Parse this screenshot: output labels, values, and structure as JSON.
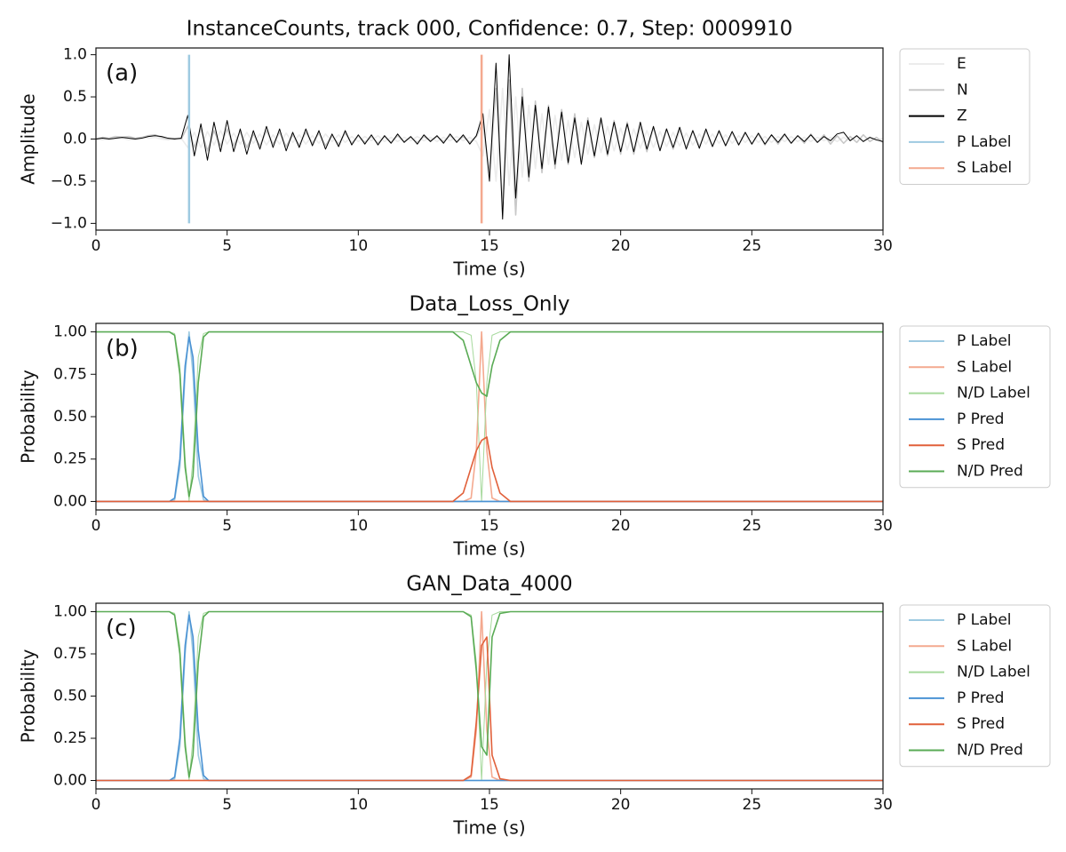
{
  "chart_data": [
    {
      "type": "line",
      "title": "InstanceCounts, track 000, Confidence: 0.7, Step: 0009910",
      "annotation": "(a)",
      "x_label": "Time (s)",
      "y_label": "Amplitude",
      "xlim": [
        0,
        30
      ],
      "xticks": [
        0,
        5,
        10,
        15,
        20,
        25,
        30
      ],
      "ylim": [
        -1.08,
        1.08
      ],
      "yticks": [
        {
          "value": -1,
          "label": "−1.0"
        },
        {
          "value": -0.5,
          "label": "−0.5"
        },
        {
          "value": 0,
          "label": "0.0"
        },
        {
          "value": 0.5,
          "label": "0.5"
        },
        {
          "value": 1,
          "label": "1.0"
        }
      ],
      "x": [
        0,
        0.25,
        0.5,
        0.75,
        1,
        1.25,
        1.5,
        1.75,
        2,
        2.25,
        2.5,
        2.75,
        3,
        3.25,
        3.5,
        3.75,
        4,
        4.25,
        4.5,
        4.75,
        5,
        5.25,
        5.5,
        5.75,
        6,
        6.25,
        6.5,
        6.75,
        7,
        7.25,
        7.5,
        7.75,
        8,
        8.25,
        8.5,
        8.75,
        9,
        9.25,
        9.5,
        9.75,
        10,
        10.25,
        10.5,
        10.75,
        11,
        11.25,
        11.5,
        11.75,
        12,
        12.25,
        12.5,
        12.75,
        13,
        13.25,
        13.5,
        13.75,
        14,
        14.25,
        14.5,
        14.75,
        15,
        15.25,
        15.5,
        15.75,
        16,
        16.25,
        16.5,
        16.75,
        17,
        17.25,
        17.5,
        17.75,
        18,
        18.25,
        18.5,
        18.75,
        19,
        19.25,
        19.5,
        19.75,
        20,
        20.25,
        20.5,
        20.75,
        21,
        21.25,
        21.5,
        21.75,
        22,
        22.25,
        22.5,
        22.75,
        23,
        23.25,
        23.5,
        23.75,
        24,
        24.25,
        24.5,
        24.75,
        25,
        25.25,
        25.5,
        25.75,
        26,
        26.25,
        26.5,
        26.75,
        27,
        27.25,
        27.5,
        27.75,
        28,
        28.25,
        28.5,
        28.75,
        29,
        29.25,
        29.5,
        29.75,
        30
      ],
      "series": [
        {
          "name": "E",
          "color": "#ececec",
          "values": [
            0,
            -0.01,
            0.01,
            0,
            0.01,
            -0.01,
            0,
            0.02,
            0.01,
            0.02,
            0,
            -0.01,
            0,
            0.01,
            -0.1,
            0.08,
            -0.1,
            0.09,
            -0.07,
            0.1,
            -0.06,
            0.07,
            -0.06,
            0.08,
            -0.05,
            0.06,
            -0.07,
            0.05,
            -0.06,
            0.07,
            -0.04,
            0.05,
            -0.06,
            0.04,
            -0.05,
            0.06,
            -0.03,
            0.05,
            -0.04,
            0.03,
            -0.03,
            0.03,
            -0.02,
            0.04,
            -0.03,
            0.02,
            -0.03,
            0.02,
            -0.02,
            0.03,
            -0.02,
            0.02,
            -0.03,
            0.02,
            -0.02,
            0.03,
            -0.02,
            0.02,
            -0.03,
            -0.2,
            0.35,
            -0.5,
            0.6,
            -0.55,
            0.5,
            -0.45,
            0.4,
            -0.35,
            0.3,
            -0.3,
            0.28,
            -0.25,
            0.22,
            -0.22,
            0.2,
            -0.18,
            0.17,
            -0.16,
            0.15,
            -0.14,
            0.13,
            -0.13,
            0.12,
            -0.11,
            0.1,
            -0.1,
            0.09,
            -0.09,
            0.08,
            -0.08,
            0.07,
            -0.07,
            0.06,
            -0.06,
            0.06,
            -0.05,
            0.05,
            -0.05,
            0.04,
            -0.04,
            0.04,
            -0.04,
            0.03,
            -0.04,
            0.03,
            -0.03,
            0.03,
            -0.03,
            0.02,
            -0.03,
            0.02,
            -0.02,
            0.02,
            -0.03,
            0.02,
            -0.02,
            0.02,
            -0.02,
            0.02,
            -0.02,
            0.01
          ]
        },
        {
          "name": "N",
          "color": "#c8c8c8",
          "values": [
            0,
            0.02,
            0.01,
            0.03,
            0.02,
            0.03,
            0.01,
            0.02,
            0.04,
            0.05,
            0.02,
            0,
            0.01,
            0,
            0.15,
            -0.1,
            0.12,
            -0.14,
            0.1,
            -0.08,
            0.12,
            -0.08,
            0.09,
            -0.1,
            0.06,
            -0.08,
            0.1,
            -0.06,
            0.08,
            -0.09,
            0.05,
            -0.07,
            0.08,
            -0.05,
            0.07,
            -0.08,
            0.04,
            -0.06,
            0.07,
            -0.05,
            0.04,
            -0.04,
            0.03,
            -0.05,
            0.03,
            -0.04,
            0.04,
            -0.03,
            0.02,
            -0.04,
            0.03,
            -0.02,
            0.03,
            -0.03,
            0.04,
            -0.03,
            0.03,
            -0.04,
            0.03,
            0.2,
            -0.4,
            0.6,
            -0.8,
            0.7,
            -0.9,
            0.6,
            -0.5,
            0.45,
            -0.4,
            0.4,
            -0.35,
            0.35,
            -0.3,
            0.3,
            -0.28,
            0.25,
            -0.22,
            0.24,
            -0.2,
            0.22,
            -0.18,
            0.2,
            -0.18,
            0.16,
            -0.15,
            0.14,
            -0.13,
            0.12,
            -0.12,
            0.11,
            -0.1,
            0.1,
            -0.09,
            0.1,
            -0.08,
            0.09,
            -0.08,
            0.08,
            -0.07,
            0.07,
            -0.06,
            0.06,
            -0.07,
            0.05,
            -0.06,
            0.05,
            -0.05,
            0.04,
            -0.05,
            0.06,
            -0.04,
            0.05,
            -0.06,
            0.04,
            -0.05,
            0.03,
            -0.04,
            0.05,
            -0.03,
            0.02,
            -0.04
          ]
        },
        {
          "name": "Z",
          "color": "#000000",
          "values": [
            0,
            0.01,
            0,
            0.01,
            0.02,
            0.01,
            0,
            0.01,
            0.03,
            0.04,
            0.03,
            0.01,
            0,
            0.01,
            0.28,
            -0.2,
            0.18,
            -0.25,
            0.2,
            -0.15,
            0.22,
            -0.15,
            0.12,
            -0.18,
            0.1,
            -0.12,
            0.15,
            -0.1,
            0.12,
            -0.14,
            0.08,
            -0.1,
            0.12,
            -0.08,
            0.1,
            -0.12,
            0.06,
            -0.09,
            0.1,
            -0.07,
            0.05,
            -0.06,
            0.05,
            -0.07,
            0.04,
            -0.05,
            0.06,
            -0.04,
            0.03,
            -0.06,
            0.05,
            -0.03,
            0.04,
            -0.05,
            0.06,
            -0.04,
            0.05,
            -0.06,
            0.04,
            0.3,
            -0.5,
            0.9,
            -0.95,
            1,
            -0.7,
            0.5,
            -0.45,
            0.4,
            -0.35,
            0.38,
            -0.3,
            0.32,
            -0.28,
            0.25,
            -0.3,
            0.22,
            -0.2,
            0.25,
            -0.18,
            0.2,
            -0.15,
            0.18,
            -0.15,
            0.2,
            -0.12,
            0.15,
            -0.14,
            0.12,
            -0.1,
            0.14,
            -0.12,
            0.1,
            -0.11,
            0.12,
            -0.09,
            0.1,
            -0.08,
            0.09,
            -0.07,
            0.08,
            -0.06,
            0.07,
            -0.06,
            0.05,
            -0.04,
            0.06,
            -0.05,
            0.04,
            -0.03,
            0.05,
            -0.04,
            0.03,
            -0.02,
            0.06,
            0.08,
            -0.02,
            0.04,
            -0.03,
            0.02,
            -0.01,
            -0.03
          ]
        },
        {
          "name": "P Label",
          "color": "#9ecae1",
          "x": [
            3.55,
            3.55
          ],
          "values": [
            -1,
            1
          ]
        },
        {
          "name": "S Label",
          "color": "#f4a98f",
          "x": [
            14.7,
            14.7
          ],
          "values": [
            -1,
            1
          ]
        }
      ]
    },
    {
      "type": "line",
      "title": "Data_Loss_Only",
      "annotation": "(b)",
      "x_label": "Time (s)",
      "y_label": "Probability",
      "xlim": [
        0,
        30
      ],
      "xticks": [
        0,
        5,
        10,
        15,
        20,
        25,
        30
      ],
      "ylim": [
        -0.05,
        1.05
      ],
      "yticks": [
        {
          "value": 0,
          "label": "0.00"
        },
        {
          "value": 0.25,
          "label": "0.25"
        },
        {
          "value": 0.5,
          "label": "0.50"
        },
        {
          "value": 0.75,
          "label": "0.75"
        },
        {
          "value": 1,
          "label": "1.00"
        }
      ],
      "x": [
        0,
        2.8,
        3.0,
        3.2,
        3.4,
        3.55,
        3.7,
        3.9,
        4.1,
        4.3,
        13.6,
        14.0,
        14.3,
        14.5,
        14.7,
        14.9,
        15.1,
        15.4,
        15.8,
        30
      ],
      "series": [
        {
          "name": "P Label",
          "color": "#9ecae1",
          "values": [
            0,
            0,
            0.01,
            0.2,
            0.75,
            1,
            0.75,
            0.15,
            0.01,
            0,
            0,
            0,
            0,
            0,
            0,
            0,
            0,
            0,
            0,
            0
          ]
        },
        {
          "name": "S Label",
          "color": "#f4a98f",
          "values": [
            0,
            0,
            0,
            0,
            0,
            0,
            0,
            0,
            0,
            0,
            0,
            0,
            0.02,
            0.3,
            1,
            0.3,
            0.02,
            0,
            0,
            0
          ]
        },
        {
          "name": "N/D Label",
          "color": "#a6d99c",
          "values": [
            1,
            1,
            0.99,
            0.8,
            0.25,
            0,
            0.25,
            0.85,
            0.99,
            1,
            1,
            1,
            0.98,
            0.7,
            0,
            0.7,
            0.98,
            1,
            1,
            1
          ]
        },
        {
          "name": "P Pred",
          "color": "#4a92d4",
          "values": [
            0,
            0,
            0.02,
            0.25,
            0.8,
            0.97,
            0.85,
            0.3,
            0.03,
            0,
            0,
            0,
            0,
            0,
            0,
            0,
            0,
            0,
            0,
            0
          ]
        },
        {
          "name": "S Pred",
          "color": "#e1603a",
          "values": [
            0,
            0,
            0,
            0,
            0,
            0,
            0,
            0,
            0,
            0,
            0,
            0.05,
            0.2,
            0.3,
            0.36,
            0.38,
            0.2,
            0.05,
            0,
            0
          ]
        },
        {
          "name": "N/D Pred",
          "color": "#5aab55",
          "values": [
            1,
            1,
            0.98,
            0.75,
            0.2,
            0.03,
            0.15,
            0.7,
            0.97,
            1,
            1,
            0.95,
            0.8,
            0.7,
            0.64,
            0.62,
            0.8,
            0.95,
            1,
            1
          ]
        }
      ]
    },
    {
      "type": "line",
      "title": "GAN_Data_4000",
      "annotation": "(c)",
      "x_label": "Time (s)",
      "y_label": "Probability",
      "xlim": [
        0,
        30
      ],
      "xticks": [
        0,
        5,
        10,
        15,
        20,
        25,
        30
      ],
      "ylim": [
        -0.05,
        1.05
      ],
      "yticks": [
        {
          "value": 0,
          "label": "0.00"
        },
        {
          "value": 0.25,
          "label": "0.25"
        },
        {
          "value": 0.5,
          "label": "0.50"
        },
        {
          "value": 0.75,
          "label": "0.75"
        },
        {
          "value": 1,
          "label": "1.00"
        }
      ],
      "x": [
        0,
        2.8,
        3.0,
        3.2,
        3.4,
        3.55,
        3.7,
        3.9,
        4.1,
        4.3,
        13.6,
        14.0,
        14.3,
        14.5,
        14.7,
        14.9,
        15.1,
        15.4,
        15.8,
        30
      ],
      "series": [
        {
          "name": "P Label",
          "color": "#9ecae1",
          "values": [
            0,
            0,
            0.01,
            0.2,
            0.75,
            1,
            0.75,
            0.15,
            0.01,
            0,
            0,
            0,
            0,
            0,
            0,
            0,
            0,
            0,
            0,
            0
          ]
        },
        {
          "name": "S Label",
          "color": "#f4a98f",
          "values": [
            0,
            0,
            0,
            0,
            0,
            0,
            0,
            0,
            0,
            0,
            0,
            0,
            0.02,
            0.3,
            1,
            0.3,
            0.02,
            0,
            0,
            0
          ]
        },
        {
          "name": "N/D Label",
          "color": "#a6d99c",
          "values": [
            1,
            1,
            0.99,
            0.8,
            0.25,
            0,
            0.25,
            0.85,
            0.99,
            1,
            1,
            1,
            0.98,
            0.7,
            0,
            0.7,
            0.98,
            1,
            1,
            1
          ]
        },
        {
          "name": "P Pred",
          "color": "#4a92d4",
          "values": [
            0,
            0,
            0.02,
            0.25,
            0.8,
            0.98,
            0.85,
            0.3,
            0.03,
            0,
            0,
            0,
            0,
            0,
            0,
            0,
            0,
            0,
            0,
            0
          ]
        },
        {
          "name": "S Pred",
          "color": "#e1603a",
          "values": [
            0,
            0,
            0,
            0,
            0,
            0,
            0,
            0,
            0,
            0,
            0,
            0,
            0.03,
            0.35,
            0.8,
            0.85,
            0.15,
            0.01,
            0,
            0
          ]
        },
        {
          "name": "N/D Pred",
          "color": "#5aab55",
          "values": [
            1,
            1,
            0.98,
            0.75,
            0.2,
            0.02,
            0.15,
            0.7,
            0.97,
            1,
            1,
            1,
            0.97,
            0.65,
            0.2,
            0.15,
            0.85,
            0.99,
            1,
            1
          ]
        }
      ]
    }
  ]
}
